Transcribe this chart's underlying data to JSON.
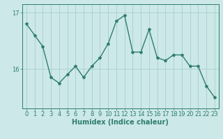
{
  "x": [
    0,
    1,
    2,
    3,
    4,
    5,
    6,
    7,
    8,
    9,
    10,
    11,
    12,
    13,
    14,
    15,
    16,
    17,
    18,
    19,
    20,
    21,
    22,
    23
  ],
  "y": [
    16.8,
    16.6,
    16.4,
    15.85,
    15.75,
    15.9,
    16.05,
    15.85,
    16.05,
    16.2,
    16.45,
    16.85,
    16.95,
    16.3,
    16.3,
    16.7,
    16.2,
    16.15,
    16.25,
    16.25,
    16.05,
    16.05,
    15.7,
    15.5
  ],
  "line_color": "#2e7d6e",
  "marker": "*",
  "marker_size": 3,
  "bg_color": "#cce8e8",
  "grid_color": "#aacece",
  "axis_color": "#2e7d6e",
  "xlabel": "Humidex (Indice chaleur)",
  "xlabel_fontsize": 7,
  "yticks": [
    16,
    17
  ],
  "ylim": [
    15.3,
    17.15
  ],
  "xlim": [
    -0.5,
    23.5
  ],
  "xticks": [
    0,
    1,
    2,
    3,
    4,
    5,
    6,
    7,
    8,
    9,
    10,
    11,
    12,
    13,
    14,
    15,
    16,
    17,
    18,
    19,
    20,
    21,
    22,
    23
  ],
  "tick_fontsize": 6,
  "line_width": 1.0
}
